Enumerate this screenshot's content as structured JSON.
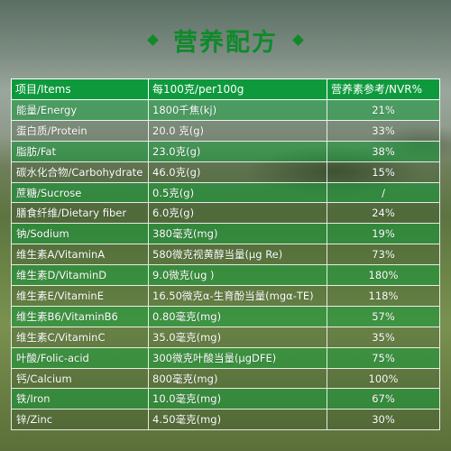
{
  "title": "营养配方",
  "header": {
    "item": "项目/Items",
    "per100g": "每100克/per100g",
    "nvr": "营养素参考/NVR%"
  },
  "rows": [
    {
      "item": "能量/Energy",
      "value": "1800千焦(kj)",
      "nvr": "21%"
    },
    {
      "item": "蛋白质/Protein",
      "value": "20.0 克(g)",
      "nvr": "33%"
    },
    {
      "item": "脂肪/Fat",
      "value": "23.0克(g)",
      "nvr": "38%"
    },
    {
      "item": "碳水化合物/Carbohydrate",
      "value": "46.0克(g)",
      "nvr": "15%"
    },
    {
      "item": "蔗糖/Sucrose",
      "value": "0.5克(g)",
      "nvr": "/"
    },
    {
      "item": "膳食纤维/Dietary fiber",
      "value": "6.0克(g)",
      "nvr": "24%"
    },
    {
      "item": "钠/Sodium",
      "value": "380毫克(mg)",
      "nvr": "19%"
    },
    {
      "item": "维生素A/VitaminA",
      "value": "580微克视黄醇当量(μg Re)",
      "nvr": "73%"
    },
    {
      "item": "维生素D/VitaminD",
      "value": "9.0微克(ug )",
      "nvr": "180%"
    },
    {
      "item": "维生素E/VitaminE",
      "value": "16.50微克α-生育酚当量(mgα-TE)",
      "nvr": "118%"
    },
    {
      "item": "维生素B6/VitaminB6",
      "value": "0.80毫克(mg)",
      "nvr": "57%"
    },
    {
      "item": "维生素C/VitaminC",
      "value": "35.0毫克(mg)",
      "nvr": "35%"
    },
    {
      "item": "叶酸/Folic-acid",
      "value": "300微克叶酸当量(μgDFE)",
      "nvr": "75%"
    },
    {
      "item": "钙/Calcium",
      "value": "800毫克(mg)",
      "nvr": "100%"
    },
    {
      "item": "铁/Iron",
      "value": "10.0毫克(mg)",
      "nvr": "67%"
    },
    {
      "item": "锌/Zinc",
      "value": "4.50毫克(mg)",
      "nvr": "30%"
    }
  ],
  "colors": {
    "accent": "#0f8a2b",
    "header_bg": "#0e9a3c"
  }
}
